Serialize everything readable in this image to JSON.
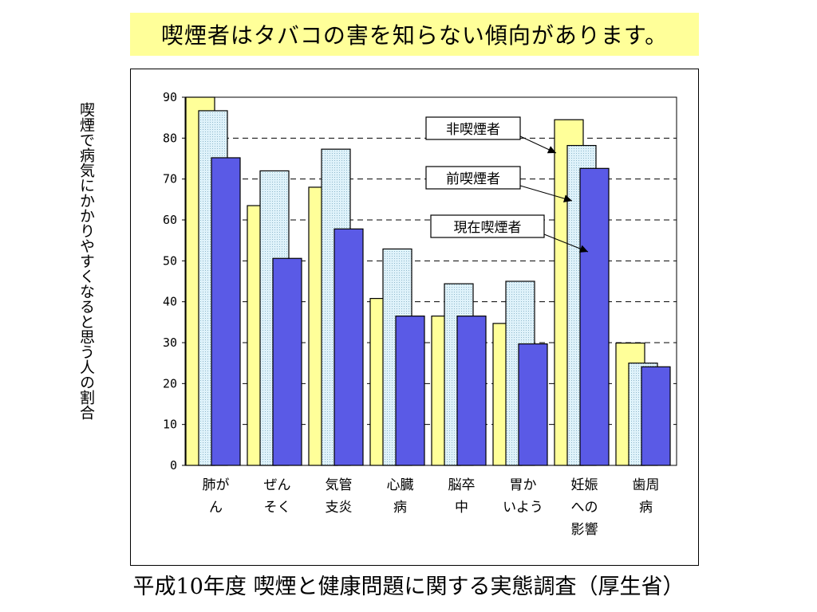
{
  "title": "喫煙者はタバコの害を知らない傾向があります。",
  "source": "平成10年度 喫煙と健康問題に関する実態調査（厚生省）",
  "chart_data": {
    "type": "bar",
    "ylabel": "喫煙で病気にかかりやすくなると思う人の割合",
    "ylim": [
      0,
      90
    ],
    "yticks": [
      0,
      10,
      20,
      30,
      40,
      50,
      60,
      70,
      80,
      90
    ],
    "grid": true,
    "categories": [
      [
        "肺が",
        "ん"
      ],
      [
        "ぜん",
        "そく"
      ],
      [
        "気管",
        "支炎"
      ],
      [
        "心臓",
        "病"
      ],
      [
        "脳卒",
        "中"
      ],
      [
        "胃か",
        "いよう"
      ],
      [
        "妊娠",
        "への",
        "影響"
      ],
      [
        "歯周",
        "病"
      ]
    ],
    "series": [
      {
        "name": "非喫煙者",
        "color": "#ffff99",
        "values": [
          90,
          63.5,
          68,
          40.8,
          36.5,
          34.7,
          84.5,
          29.9
        ]
      },
      {
        "name": "前喫煙者",
        "color": "#cce8f4",
        "values": [
          86.7,
          72,
          77.3,
          52.9,
          44.4,
          45,
          78.2,
          25
        ]
      },
      {
        "name": "現在喫煙者",
        "color": "#5a5ae6",
        "values": [
          75.2,
          50.6,
          57.8,
          36.5,
          36.5,
          29.7,
          72.6,
          24.1
        ]
      }
    ]
  }
}
